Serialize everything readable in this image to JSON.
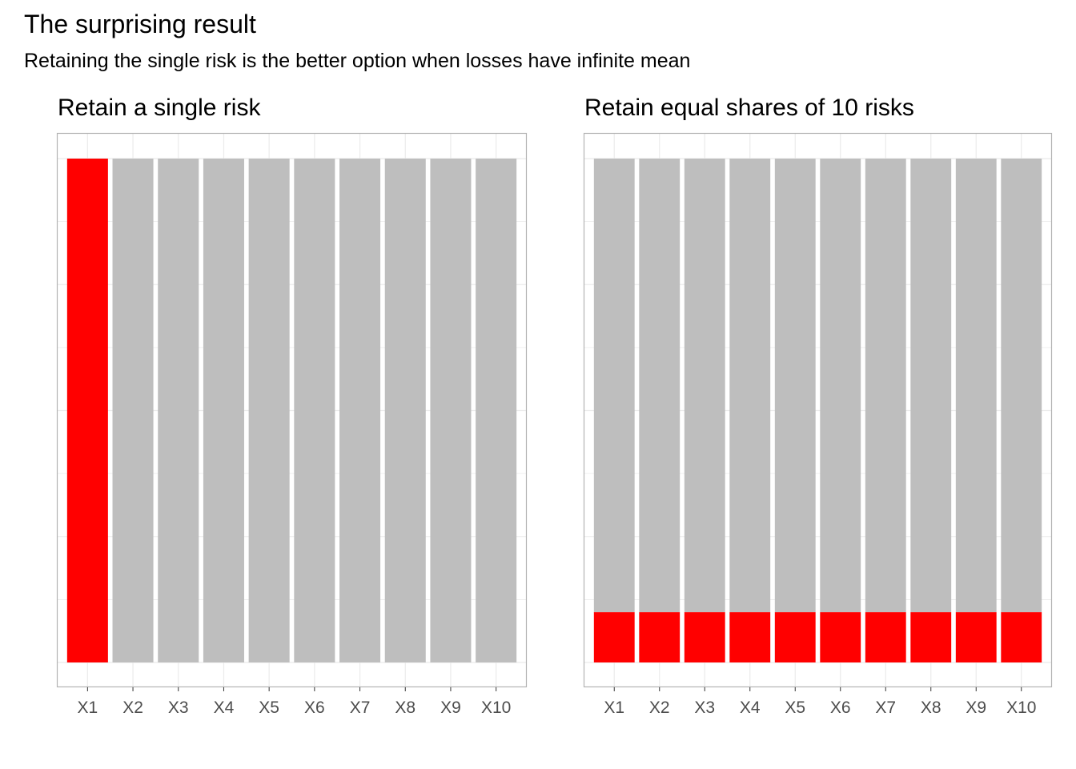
{
  "title": "The surprising result",
  "subtitle": "Retaining the single risk is the better option when losses have infinite mean",
  "colors": {
    "retained": "#ff0000",
    "other": "#bebebe",
    "grid": "#ebebeb",
    "border": "#b3b3b3"
  },
  "chart_data": [
    {
      "type": "bar",
      "stacked": true,
      "title": "Retain a single risk",
      "xlabel": "",
      "ylabel": "",
      "ylim": [
        0,
        1.05
      ],
      "grid": true,
      "categories": [
        "X1",
        "X2",
        "X3",
        "X4",
        "X5",
        "X6",
        "X7",
        "X8",
        "X9",
        "X10"
      ],
      "series": [
        {
          "values": [
            1,
            0,
            0,
            0,
            0,
            0,
            0,
            0,
            0,
            0
          ],
          "color": "#ff0000"
        },
        {
          "values": [
            0,
            1,
            1,
            1,
            1,
            1,
            1,
            1,
            1,
            1
          ],
          "color": "#bebebe"
        }
      ]
    },
    {
      "type": "bar",
      "stacked": true,
      "title": "Retain equal shares of 10 risks",
      "xlabel": "",
      "ylabel": "",
      "ylim": [
        0,
        1.05
      ],
      "grid": true,
      "categories": [
        "X1",
        "X2",
        "X3",
        "X4",
        "X5",
        "X6",
        "X7",
        "X8",
        "X9",
        "X10"
      ],
      "series": [
        {
          "values": [
            0.1,
            0.1,
            0.1,
            0.1,
            0.1,
            0.1,
            0.1,
            0.1,
            0.1,
            0.1
          ],
          "color": "#ff0000"
        },
        {
          "values": [
            0.9,
            0.9,
            0.9,
            0.9,
            0.9,
            0.9,
            0.9,
            0.9,
            0.9,
            0.9
          ],
          "color": "#bebebe"
        }
      ]
    }
  ]
}
